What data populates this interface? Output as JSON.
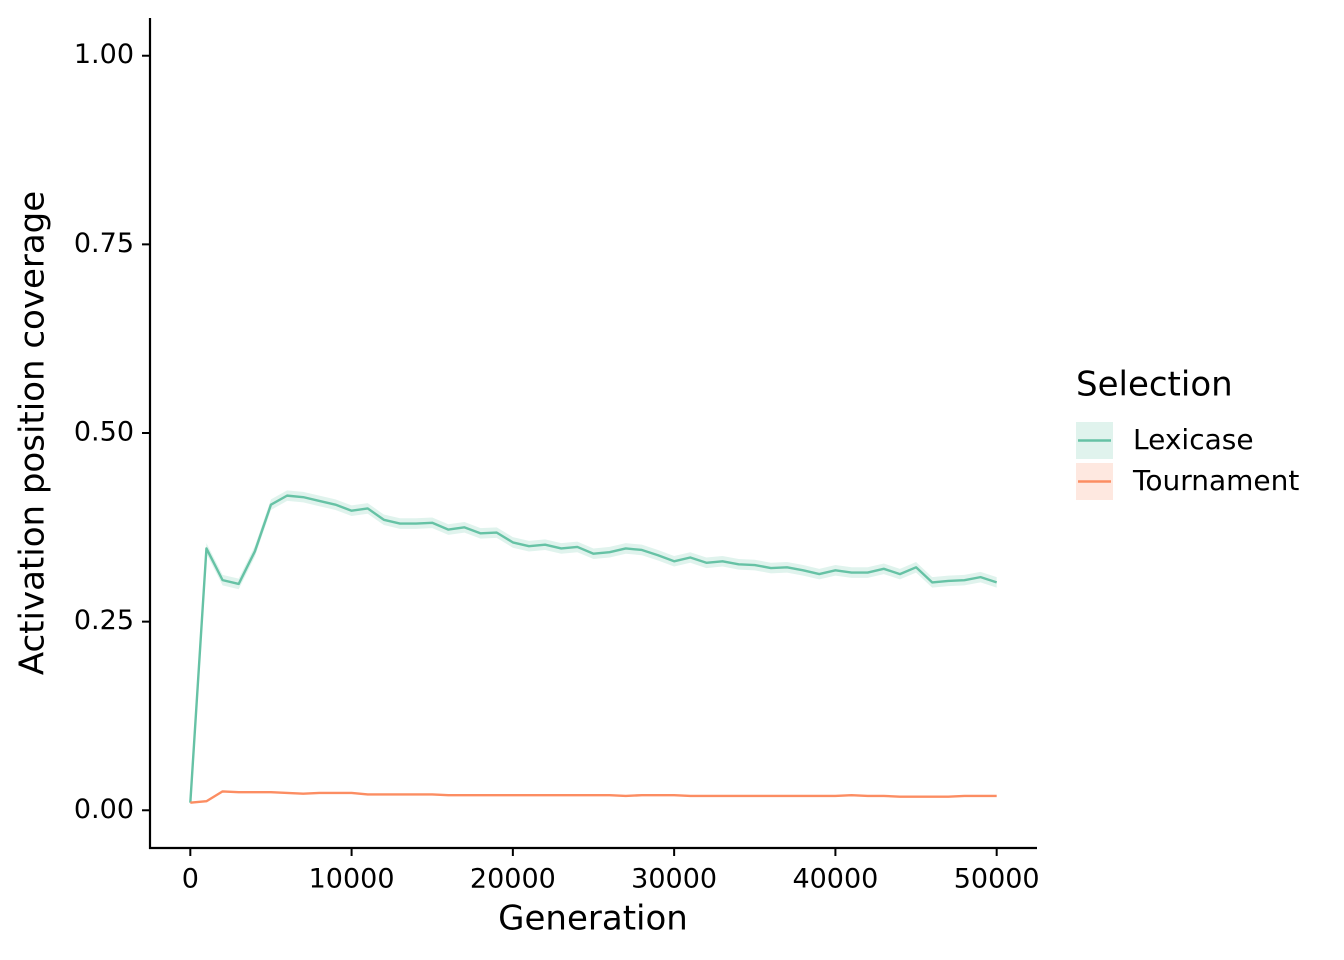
{
  "chart_data": {
    "type": "line",
    "x_label": "Generation",
    "y_label": "Activation position coverage",
    "legend_title": "Selection",
    "legend": "right",
    "xlim": [
      -2500,
      52500
    ],
    "xticks": [
      0,
      10000,
      20000,
      30000,
      40000,
      50000
    ],
    "ylim": [
      -0.05,
      1.05
    ],
    "yticks": [
      {
        "value": 0,
        "label": "0.00"
      },
      {
        "value": 0.25,
        "label": "0.25"
      },
      {
        "value": 0.5,
        "label": "0.50"
      },
      {
        "value": 0.75,
        "label": "0.75"
      },
      {
        "value": 1,
        "label": "1.00"
      }
    ],
    "x": [
      0,
      1000,
      2000,
      3000,
      4000,
      5000,
      6000,
      7000,
      8000,
      9000,
      10000,
      11000,
      12000,
      13000,
      14000,
      15000,
      16000,
      17000,
      18000,
      19000,
      20000,
      21000,
      22000,
      23000,
      24000,
      25000,
      26000,
      27000,
      28000,
      29000,
      30000,
      31000,
      32000,
      33000,
      34000,
      35000,
      36000,
      37000,
      38000,
      39000,
      40000,
      41000,
      42000,
      43000,
      44000,
      45000,
      46000,
      47000,
      48000,
      49000,
      50000
    ],
    "series": [
      {
        "name": "Lexicase",
        "color": "#66c2a5",
        "values": [
          0.01,
          0.347,
          0.305,
          0.3,
          0.343,
          0.405,
          0.417,
          0.415,
          0.41,
          0.405,
          0.397,
          0.4,
          0.385,
          0.38,
          0.38,
          0.381,
          0.372,
          0.375,
          0.367,
          0.368,
          0.355,
          0.35,
          0.352,
          0.347,
          0.349,
          0.34,
          0.342,
          0.347,
          0.345,
          0.338,
          0.33,
          0.335,
          0.328,
          0.33,
          0.326,
          0.325,
          0.321,
          0.322,
          0.318,
          0.313,
          0.318,
          0.315,
          0.315,
          0.32,
          0.313,
          0.322,
          0.302,
          0.304,
          0.305,
          0.309,
          0.302
        ],
        "lower": [
          0.009,
          0.34,
          0.298,
          0.293,
          0.336,
          0.398,
          0.41,
          0.408,
          0.403,
          0.398,
          0.39,
          0.393,
          0.378,
          0.373,
          0.373,
          0.374,
          0.365,
          0.368,
          0.36,
          0.361,
          0.348,
          0.343,
          0.345,
          0.34,
          0.342,
          0.333,
          0.335,
          0.34,
          0.338,
          0.331,
          0.323,
          0.328,
          0.321,
          0.323,
          0.319,
          0.318,
          0.314,
          0.315,
          0.311,
          0.306,
          0.311,
          0.308,
          0.308,
          0.313,
          0.306,
          0.315,
          0.295,
          0.297,
          0.298,
          0.302,
          0.295
        ],
        "upper": [
          0.011,
          0.354,
          0.312,
          0.307,
          0.35,
          0.412,
          0.424,
          0.422,
          0.417,
          0.412,
          0.404,
          0.407,
          0.392,
          0.387,
          0.387,
          0.388,
          0.379,
          0.382,
          0.374,
          0.375,
          0.362,
          0.357,
          0.359,
          0.354,
          0.356,
          0.347,
          0.349,
          0.354,
          0.352,
          0.345,
          0.337,
          0.342,
          0.335,
          0.337,
          0.333,
          0.332,
          0.328,
          0.329,
          0.325,
          0.32,
          0.325,
          0.322,
          0.322,
          0.327,
          0.32,
          0.329,
          0.309,
          0.311,
          0.312,
          0.316,
          0.309
        ]
      },
      {
        "name": "Tournament",
        "color": "#fc8d62",
        "values": [
          0.01,
          0.012,
          0.025,
          0.024,
          0.024,
          0.024,
          0.023,
          0.022,
          0.023,
          0.023,
          0.023,
          0.021,
          0.021,
          0.021,
          0.021,
          0.021,
          0.02,
          0.02,
          0.02,
          0.02,
          0.02,
          0.02,
          0.02,
          0.02,
          0.02,
          0.02,
          0.02,
          0.019,
          0.02,
          0.02,
          0.02,
          0.019,
          0.019,
          0.019,
          0.019,
          0.019,
          0.019,
          0.019,
          0.019,
          0.019,
          0.019,
          0.02,
          0.019,
          0.019,
          0.018,
          0.018,
          0.018,
          0.018,
          0.019,
          0.019,
          0.019
        ]
      }
    ]
  }
}
